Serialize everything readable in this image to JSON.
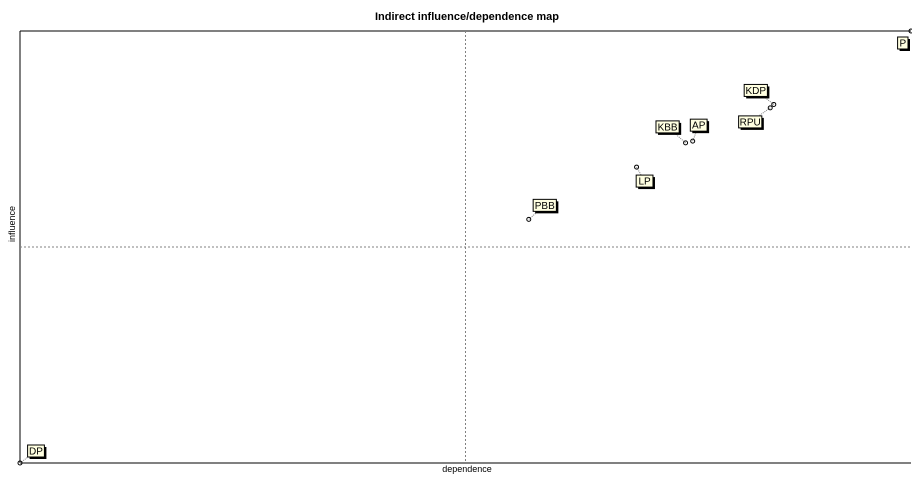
{
  "chart_data": {
    "type": "scatter",
    "title": "Indirect influence/dependence map",
    "xlabel": "dependence",
    "ylabel": "influence",
    "xlim": [
      0,
      100
    ],
    "ylim": [
      0,
      100
    ],
    "quadrant_lines": {
      "x": 50,
      "y": 50
    },
    "grid": false,
    "legend": "none",
    "points": [
      {
        "label": "P",
        "x": 100,
        "y": 100
      },
      {
        "label": "KDP",
        "x": 84.6,
        "y": 83.0
      },
      {
        "label": "RPU",
        "x": 84.2,
        "y": 82.2
      },
      {
        "label": "KBB",
        "x": 74.7,
        "y": 74.1
      },
      {
        "label": "AP",
        "x": 75.5,
        "y": 74.5
      },
      {
        "label": "LP",
        "x": 69.2,
        "y": 68.5
      },
      {
        "label": "PBB",
        "x": 57.1,
        "y": 56.4
      },
      {
        "label": "DP",
        "x": 0,
        "y": 0
      }
    ],
    "colors": {
      "label_fill": "#ffffe1",
      "label_border": "#000000",
      "axis": "#000000",
      "quadrant_line": "#808080",
      "point": "#000000"
    }
  }
}
